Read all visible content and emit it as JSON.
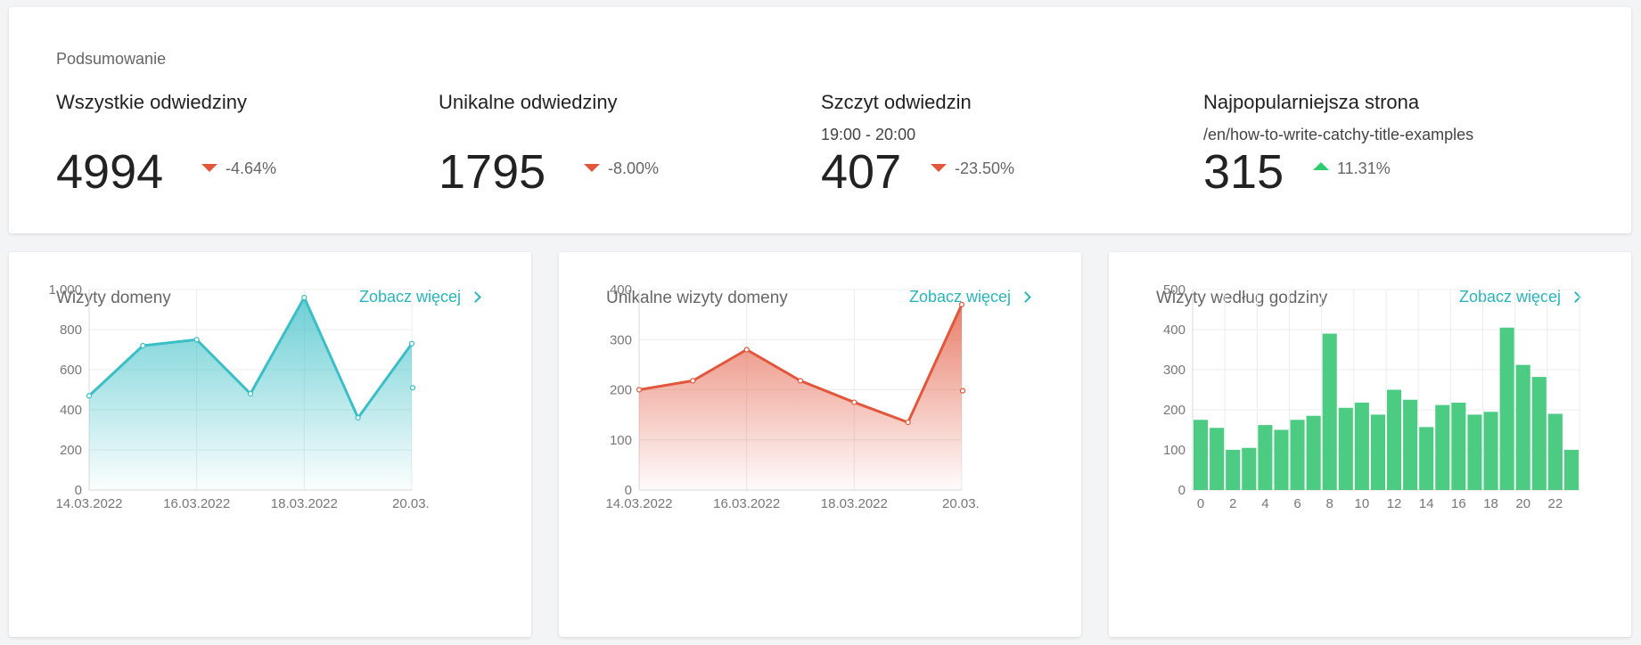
{
  "summary": {
    "title": "Podsumowanie",
    "stats": [
      {
        "label": "Wszystkie odwiedziny",
        "sub": "",
        "value": "4994",
        "change": "-4.64%",
        "trend": "down"
      },
      {
        "label": "Unikalne odwiedziny",
        "sub": "",
        "value": "1795",
        "change": "-8.00%",
        "trend": "down"
      },
      {
        "label": "Szczyt odwiedzin",
        "sub": "19:00 - 20:00",
        "value": "407",
        "change": "-23.50%",
        "trend": "down"
      },
      {
        "label": "Najpopularniejsza strona",
        "sub": "/en/how-to-write-catchy-title-examples",
        "value": "315",
        "change": "11.31%",
        "trend": "up"
      }
    ]
  },
  "cards": [
    {
      "title": "Wizyty domeny",
      "link": "Zobacz więcej"
    },
    {
      "title": "Unikalne wizyty domeny",
      "link": "Zobacz więcej"
    },
    {
      "title": "Wizyty według godziny",
      "link": "Zobacz więcej"
    }
  ],
  "colors": {
    "teal": "#3bbfc7",
    "red": "#e2563c",
    "green": "#4ccb83",
    "link": "#2ab5b9"
  },
  "icons": {
    "down": "triangle-down-icon",
    "up": "triangle-up-icon",
    "chevron": "chevron-right-icon"
  },
  "chart_data": [
    {
      "type": "area",
      "x": [
        "14.03.2022",
        "15.03.2022",
        "16.03.2022",
        "17.03.2022",
        "18.03.2022",
        "19.03.2022",
        "20.03.2022"
      ],
      "tick_labels": [
        "14.03.2022",
        "16.03.2022",
        "18.03.2022",
        "20.03."
      ],
      "values": [
        470,
        720,
        750,
        480,
        960,
        360,
        730
      ],
      "trailing_point": 510,
      "ylim": [
        0,
        1000
      ],
      "yticks": [
        "0",
        "200",
        "400",
        "600",
        "800",
        "1,000"
      ],
      "grid": true,
      "color": "#3bbfc7"
    },
    {
      "type": "area",
      "x": [
        "14.03.2022",
        "15.03.2022",
        "16.03.2022",
        "17.03.2022",
        "18.03.2022",
        "19.03.2022",
        "20.03.2022"
      ],
      "tick_labels": [
        "14.03.2022",
        "16.03.2022",
        "18.03.2022",
        "20.03."
      ],
      "values": [
        200,
        218,
        280,
        218,
        175,
        135,
        370
      ],
      "trailing_point": 198,
      "ylim": [
        0,
        400
      ],
      "yticks": [
        "0",
        "100",
        "200",
        "300",
        "400"
      ],
      "grid": true,
      "color": "#e2563c"
    },
    {
      "type": "bar",
      "categories": [
        "0",
        "1",
        "2",
        "3",
        "4",
        "5",
        "6",
        "7",
        "8",
        "9",
        "10",
        "11",
        "12",
        "13",
        "14",
        "15",
        "16",
        "17",
        "18",
        "19",
        "20",
        "21",
        "22",
        "23"
      ],
      "tick_labels": [
        "0",
        "2",
        "4",
        "6",
        "8",
        "10",
        "12",
        "14",
        "16",
        "18",
        "20",
        "22"
      ],
      "values": [
        175,
        155,
        100,
        105,
        162,
        150,
        175,
        185,
        390,
        205,
        218,
        188,
        250,
        225,
        157,
        212,
        218,
        188,
        195,
        405,
        312,
        282,
        190,
        100
      ],
      "ylim": [
        0,
        500
      ],
      "yticks": [
        "0",
        "100",
        "200",
        "300",
        "400",
        "500"
      ],
      "grid": true,
      "color": "#4ccb83"
    }
  ]
}
